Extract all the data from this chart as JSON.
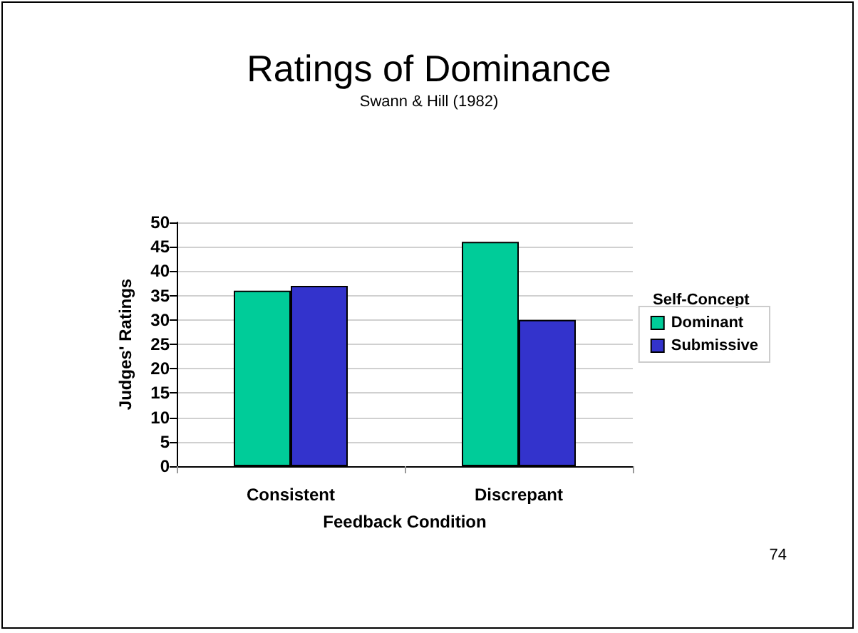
{
  "chart_data": {
    "type": "bar",
    "title": "Ratings of Dominance",
    "subtitle": "Swann & Hill (1982)",
    "xlabel": "Feedback Condition",
    "ylabel": "Judges' Ratings",
    "legend_title": "Self-Concept",
    "annotations": [
      "74"
    ],
    "categories": [
      "Consistent",
      "Discrepant"
    ],
    "series": [
      {
        "name": "Dominant",
        "color": "#00cc99",
        "values": [
          36,
          46
        ]
      },
      {
        "name": "Submissive",
        "color": "#3333cc",
        "values": [
          37,
          30
        ]
      }
    ],
    "ylim": [
      0,
      50
    ],
    "yticks": [
      0,
      5,
      10,
      15,
      20,
      25,
      30,
      35,
      40,
      45,
      50
    ],
    "grid": "y",
    "legend": "right"
  }
}
